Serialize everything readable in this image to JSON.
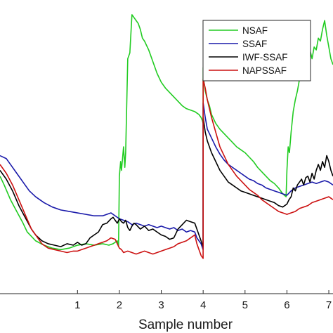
{
  "chart_data": {
    "type": "line",
    "title": "",
    "xlabel": "Sample number",
    "ylabel": "",
    "xlim": [
      -0.85,
      7.1
    ],
    "ylim": [
      0,
      1
    ],
    "xticks": [
      1,
      2,
      3,
      4,
      5,
      6,
      7
    ],
    "xtick_labels": [
      "1",
      "2",
      "3",
      "4",
      "5",
      "6",
      "7"
    ],
    "grid": false,
    "legend_position": "top-right",
    "series": [
      {
        "name": "NSAF",
        "color": "#22cc22",
        "x": [
          -0.85,
          -0.75,
          -0.6,
          -0.45,
          -0.3,
          -0.2,
          0.0,
          0.2,
          0.4,
          0.6,
          0.8,
          1.0,
          1.2,
          1.4,
          1.6,
          1.75,
          1.85,
          1.95,
          1.98,
          2.0,
          2.03,
          2.05,
          2.1,
          2.13,
          2.15,
          2.2,
          2.25,
          2.3,
          2.35,
          2.4,
          2.45,
          2.5,
          2.55,
          2.6,
          2.7,
          2.8,
          2.9,
          3.0,
          3.1,
          3.2,
          3.3,
          3.4,
          3.5,
          3.6,
          3.7,
          3.8,
          3.85,
          3.9,
          3.95,
          3.98,
          3.999,
          4.0,
          4.02,
          4.05,
          4.1,
          4.15,
          4.2,
          4.3,
          4.4,
          4.5,
          4.6,
          4.7,
          4.8,
          4.9,
          5.0,
          5.1,
          5.2,
          5.3,
          5.4,
          5.5,
          5.6,
          5.7,
          5.8,
          5.9,
          5.98,
          6.0,
          6.03,
          6.06,
          6.1,
          6.15,
          6.2,
          6.25,
          6.3,
          6.35,
          6.4,
          6.45,
          6.5,
          6.55,
          6.6,
          6.65,
          6.7,
          6.75,
          6.8,
          6.85,
          6.9,
          6.95,
          7.0,
          7.05,
          7.1
        ],
        "values": [
          0.4,
          0.37,
          0.32,
          0.28,
          0.24,
          0.21,
          0.18,
          0.165,
          0.155,
          0.15,
          0.155,
          0.165,
          0.17,
          0.165,
          0.17,
          0.165,
          0.17,
          0.18,
          0.16,
          0.4,
          0.45,
          0.42,
          0.5,
          0.43,
          0.48,
          0.8,
          0.82,
          0.95,
          0.94,
          0.93,
          0.92,
          0.9,
          0.87,
          0.86,
          0.83,
          0.79,
          0.75,
          0.72,
          0.7,
          0.685,
          0.67,
          0.655,
          0.64,
          0.63,
          0.625,
          0.62,
          0.615,
          0.61,
          0.6,
          0.59,
          0.58,
          0.77,
          0.72,
          0.69,
          0.66,
          0.64,
          0.61,
          0.58,
          0.56,
          0.545,
          0.53,
          0.515,
          0.5,
          0.49,
          0.48,
          0.465,
          0.45,
          0.43,
          0.415,
          0.4,
          0.385,
          0.375,
          0.36,
          0.34,
          0.33,
          0.42,
          0.5,
          0.48,
          0.55,
          0.62,
          0.66,
          0.69,
          0.73,
          0.75,
          0.77,
          0.79,
          0.8,
          0.83,
          0.8,
          0.84,
          0.83,
          0.87,
          0.86,
          0.9,
          0.93,
          0.88,
          0.84,
          0.8,
          0.78
        ]
      },
      {
        "name": "SSAF",
        "color": "#1a1aaa",
        "x": [
          -0.85,
          -0.7,
          -0.6,
          -0.45,
          -0.3,
          -0.15,
          0.0,
          0.2,
          0.4,
          0.6,
          0.8,
          1.0,
          1.2,
          1.4,
          1.6,
          1.7,
          1.8,
          1.9,
          2.0,
          2.1,
          2.2,
          2.3,
          2.4,
          2.5,
          2.6,
          2.7,
          2.8,
          2.9,
          3.0,
          3.1,
          3.2,
          3.3,
          3.4,
          3.5,
          3.6,
          3.7,
          3.8,
          3.85,
          3.9,
          3.95,
          3.999,
          4.0,
          4.05,
          4.1,
          4.2,
          4.3,
          4.4,
          4.5,
          4.6,
          4.7,
          4.8,
          4.9,
          5.0,
          5.1,
          5.2,
          5.3,
          5.4,
          5.5,
          5.6,
          5.7,
          5.8,
          5.9,
          6.0,
          6.1,
          6.2,
          6.3,
          6.4,
          6.5,
          6.6,
          6.7,
          6.8,
          6.9,
          7.0,
          7.1
        ],
        "values": [
          0.47,
          0.46,
          0.44,
          0.41,
          0.38,
          0.35,
          0.33,
          0.31,
          0.295,
          0.285,
          0.28,
          0.275,
          0.27,
          0.265,
          0.265,
          0.27,
          0.275,
          0.265,
          0.255,
          0.25,
          0.245,
          0.235,
          0.24,
          0.235,
          0.23,
          0.235,
          0.23,
          0.225,
          0.23,
          0.225,
          0.22,
          0.225,
          0.215,
          0.22,
          0.21,
          0.215,
          0.21,
          0.19,
          0.18,
          0.17,
          0.15,
          0.65,
          0.6,
          0.56,
          0.53,
          0.5,
          0.475,
          0.455,
          0.44,
          0.43,
          0.42,
          0.41,
          0.4,
          0.39,
          0.385,
          0.375,
          0.37,
          0.36,
          0.355,
          0.35,
          0.345,
          0.34,
          0.335,
          0.35,
          0.36,
          0.365,
          0.37,
          0.375,
          0.38,
          0.375,
          0.38,
          0.385,
          0.38,
          0.37
        ]
      },
      {
        "name": "IWF-SSAF",
        "color": "#000000",
        "x": [
          -0.85,
          -0.7,
          -0.55,
          -0.4,
          -0.25,
          -0.1,
          0.0,
          0.15,
          0.3,
          0.45,
          0.6,
          0.75,
          0.9,
          1.0,
          1.1,
          1.2,
          1.3,
          1.4,
          1.5,
          1.6,
          1.7,
          1.8,
          1.85,
          1.9,
          1.95,
          2.0,
          2.05,
          2.1,
          2.15,
          2.2,
          2.25,
          2.3,
          2.35,
          2.4,
          2.5,
          2.6,
          2.7,
          2.8,
          2.9,
          3.0,
          3.1,
          3.2,
          3.3,
          3.4,
          3.5,
          3.6,
          3.7,
          3.8,
          3.85,
          3.9,
          3.95,
          3.999,
          4.0,
          4.05,
          4.1,
          4.2,
          4.3,
          4.4,
          4.5,
          4.6,
          4.7,
          4.8,
          4.9,
          5.0,
          5.1,
          5.2,
          5.3,
          5.4,
          5.5,
          5.6,
          5.7,
          5.8,
          5.9,
          6.0,
          6.05,
          6.1,
          6.15,
          6.2,
          6.25,
          6.3,
          6.35,
          6.4,
          6.45,
          6.5,
          6.55,
          6.6,
          6.65,
          6.7,
          6.75,
          6.8,
          6.85,
          6.9,
          6.95,
          7.0,
          7.05,
          7.1
        ],
        "values": [
          0.42,
          0.39,
          0.35,
          0.3,
          0.26,
          0.22,
          0.2,
          0.18,
          0.17,
          0.165,
          0.16,
          0.17,
          0.165,
          0.175,
          0.165,
          0.17,
          0.19,
          0.2,
          0.21,
          0.235,
          0.24,
          0.255,
          0.26,
          0.25,
          0.24,
          0.255,
          0.245,
          0.24,
          0.25,
          0.225,
          0.215,
          0.23,
          0.24,
          0.235,
          0.22,
          0.23,
          0.215,
          0.22,
          0.21,
          0.2,
          0.195,
          0.185,
          0.19,
          0.22,
          0.235,
          0.25,
          0.245,
          0.24,
          0.22,
          0.2,
          0.18,
          0.16,
          0.6,
          0.55,
          0.52,
          0.48,
          0.45,
          0.42,
          0.4,
          0.38,
          0.37,
          0.36,
          0.35,
          0.345,
          0.34,
          0.335,
          0.33,
          0.325,
          0.32,
          0.315,
          0.31,
          0.3,
          0.295,
          0.305,
          0.32,
          0.33,
          0.36,
          0.35,
          0.37,
          0.38,
          0.39,
          0.37,
          0.395,
          0.4,
          0.38,
          0.41,
          0.39,
          0.42,
          0.44,
          0.42,
          0.45,
          0.43,
          0.47,
          0.45,
          0.42,
          0.4
        ]
      },
      {
        "name": "NAPSSAF",
        "color": "#cc1111",
        "x": [
          -0.85,
          -0.7,
          -0.55,
          -0.4,
          -0.25,
          -0.1,
          0.0,
          0.15,
          0.3,
          0.45,
          0.6,
          0.75,
          0.9,
          1.0,
          1.1,
          1.2,
          1.3,
          1.4,
          1.5,
          1.6,
          1.7,
          1.8,
          1.9,
          1.95,
          2.0,
          2.05,
          2.1,
          2.2,
          2.3,
          2.4,
          2.5,
          2.6,
          2.7,
          2.8,
          2.9,
          3.0,
          3.1,
          3.2,
          3.3,
          3.4,
          3.5,
          3.6,
          3.7,
          3.8,
          3.85,
          3.9,
          3.95,
          3.999,
          4.0,
          4.05,
          4.1,
          4.2,
          4.3,
          4.4,
          4.5,
          4.6,
          4.7,
          4.8,
          4.9,
          5.0,
          5.1,
          5.2,
          5.3,
          5.4,
          5.5,
          5.6,
          5.7,
          5.8,
          5.9,
          6.0,
          6.1,
          6.2,
          6.3,
          6.4,
          6.5,
          6.6,
          6.7,
          6.8,
          6.9,
          7.0,
          7.1
        ],
        "values": [
          0.44,
          0.41,
          0.37,
          0.32,
          0.27,
          0.22,
          0.2,
          0.17,
          0.155,
          0.15,
          0.145,
          0.14,
          0.145,
          0.145,
          0.15,
          0.155,
          0.16,
          0.165,
          0.17,
          0.175,
          0.18,
          0.19,
          0.185,
          0.17,
          0.155,
          0.15,
          0.14,
          0.145,
          0.14,
          0.135,
          0.14,
          0.145,
          0.14,
          0.135,
          0.14,
          0.145,
          0.15,
          0.155,
          0.16,
          0.17,
          0.175,
          0.18,
          0.19,
          0.2,
          0.17,
          0.15,
          0.13,
          0.12,
          0.73,
          0.7,
          0.66,
          0.6,
          0.55,
          0.5,
          0.47,
          0.44,
          0.42,
          0.4,
          0.385,
          0.37,
          0.355,
          0.345,
          0.335,
          0.32,
          0.31,
          0.3,
          0.29,
          0.28,
          0.275,
          0.27,
          0.275,
          0.28,
          0.29,
          0.295,
          0.3,
          0.31,
          0.315,
          0.32,
          0.325,
          0.33,
          0.32
        ]
      }
    ]
  }
}
